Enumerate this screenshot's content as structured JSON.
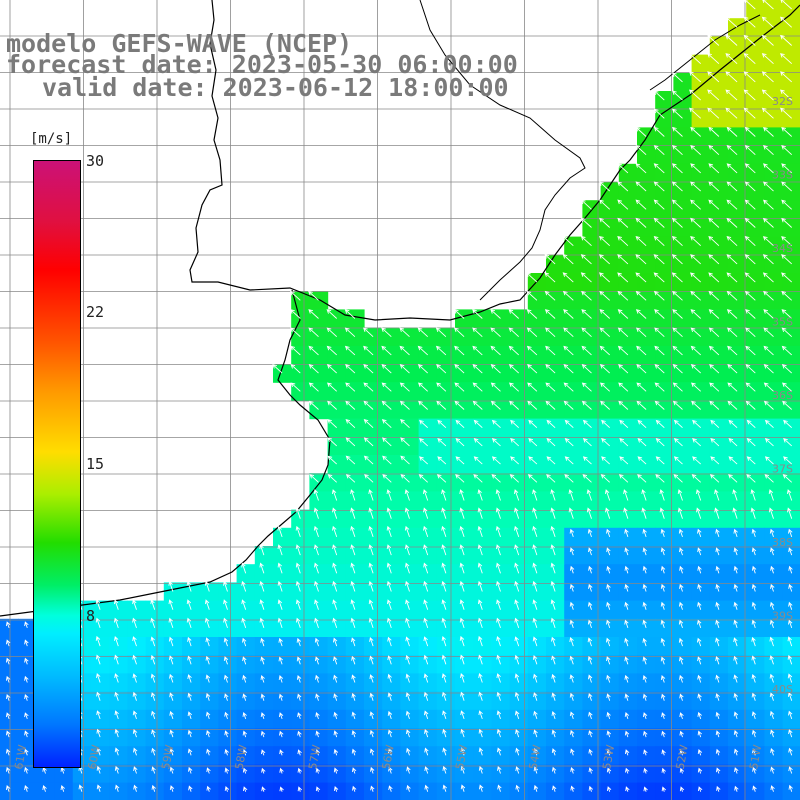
{
  "title": {
    "line1": "modelo GEFS-WAVE (NCEP)",
    "line2": "forecast date: 2023-05-30 06:00:00",
    "line3": "valid date: 2023-06-12 18:00:00"
  },
  "colorbar": {
    "unit": "[m/s]",
    "ticks": [
      {
        "value": 30,
        "label": "30"
      },
      {
        "value": 22,
        "label": "22"
      },
      {
        "value": 15,
        "label": "15"
      },
      {
        "value": 8,
        "label": "8"
      }
    ]
  },
  "grid": {
    "lat_labels": [
      "32S",
      "33S",
      "34S",
      "35S",
      "36S",
      "37S",
      "38S",
      "39S",
      "40S"
    ],
    "lon_labels": [
      "61W",
      "60W",
      "59W",
      "58W",
      "57W",
      "56W",
      "55W",
      "54W",
      "53W",
      "52W",
      "51W"
    ]
  },
  "colors": {
    "land": "#ffffff",
    "coast": "#000000",
    "grid": "#888888",
    "arrows": "#ffffff",
    "label": "#8a8a8a"
  }
}
